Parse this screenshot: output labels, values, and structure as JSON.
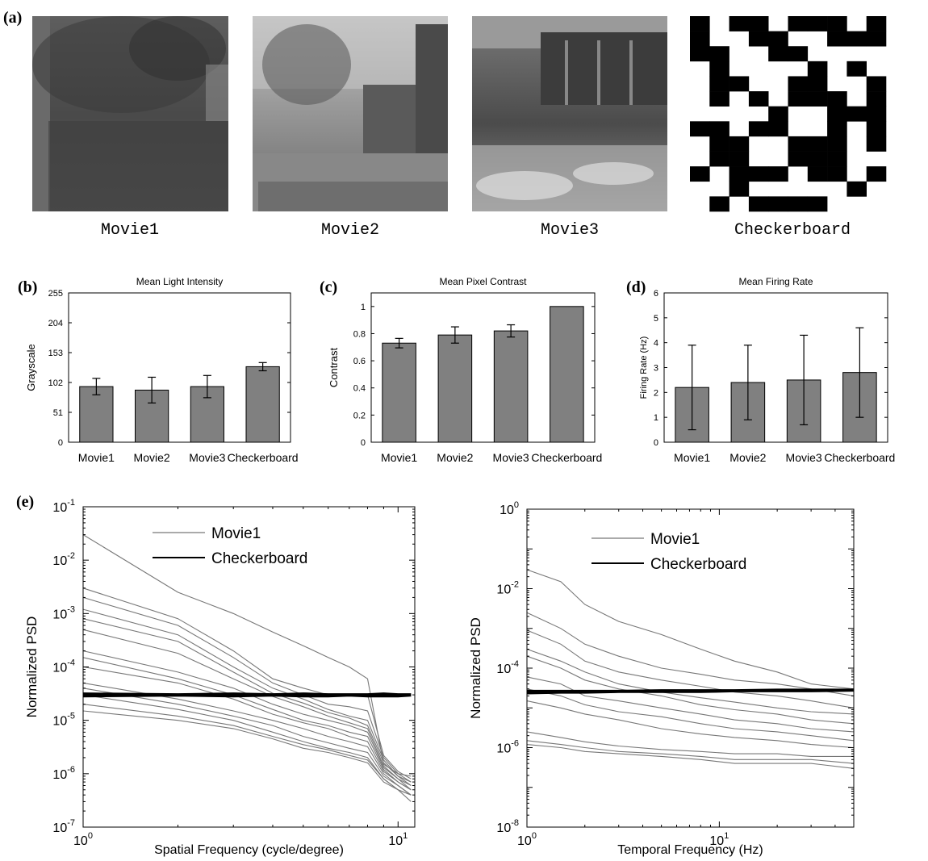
{
  "panels": {
    "a": "(a)",
    "b": "(b)",
    "c": "(c)",
    "d": "(d)",
    "e": "(e)"
  },
  "stimuli": {
    "labels": [
      "Movie1",
      "Movie2",
      "Movie3",
      "Checkerboard"
    ],
    "checker_cells": [
      "1011011101",
      "1001100111",
      "1100110000",
      "0100001010",
      "0110011001",
      "0101011101",
      "0000100111",
      "1101100101",
      "0110011101",
      "0110011100",
      "1011101101",
      "0010000010",
      "0101111000"
    ]
  },
  "colors": {
    "bar_fill": "#808080",
    "movie_line": "#777777",
    "checker_line": "#000000",
    "axis": "#000000"
  },
  "chart_data": [
    {
      "id": "b",
      "type": "bar",
      "title": "Mean Light Intensity",
      "xlabel": "",
      "ylabel": "Grayscale",
      "categories": [
        "Movie1",
        "Movie2",
        "Movie3",
        "Checkerboard"
      ],
      "values": [
        95,
        89,
        95,
        129
      ],
      "errors": [
        14,
        22,
        19,
        7
      ],
      "ylim": [
        0,
        255
      ],
      "yticks": [
        0,
        51,
        102,
        153,
        204,
        255
      ],
      "ytick_labels": [
        "0",
        "51",
        "102",
        "153",
        "204",
        "255"
      ]
    },
    {
      "id": "c",
      "type": "bar",
      "title": "Mean Pixel Contrast",
      "xlabel": "",
      "ylabel": "Contrast",
      "categories": [
        "Movie1",
        "Movie2",
        "Movie3",
        "Checkerboard"
      ],
      "values": [
        0.73,
        0.79,
        0.82,
        1.0
      ],
      "errors": [
        0.035,
        0.06,
        0.045,
        0
      ],
      "ylim": [
        0,
        1.1
      ],
      "yticks": [
        0,
        0.2,
        0.4,
        0.6,
        0.8,
        1
      ],
      "ytick_labels": [
        "0",
        "0.2",
        "0.4",
        "0.6",
        "0.8",
        "1"
      ]
    },
    {
      "id": "d",
      "type": "bar",
      "title": "Mean Firing Rate",
      "xlabel": "",
      "ylabel": "Firing Rate (Hz)",
      "categories": [
        "Movie1",
        "Movie2",
        "Movie3",
        "Checkerboard"
      ],
      "values": [
        2.2,
        2.4,
        2.5,
        2.8
      ],
      "errors": [
        1.7,
        1.5,
        1.8,
        1.8
      ],
      "ylim": [
        0,
        6
      ],
      "yticks": [
        0,
        1,
        2,
        3,
        4,
        5,
        6
      ],
      "ytick_labels": [
        "0",
        "1",
        "2",
        "3",
        "4",
        "5",
        "6"
      ]
    },
    {
      "id": "e1",
      "type": "line",
      "xlabel": "Spatial Frequency (cycle/degree)",
      "ylabel": "Normalized PSD",
      "xscale": "log",
      "yscale": "log",
      "xlim": [
        1,
        11.3
      ],
      "ylim": [
        1e-07,
        0.1
      ],
      "xtick_labels": [
        {
          "base": "10",
          "exp": "0"
        },
        {
          "base": "10",
          "exp": "1"
        }
      ],
      "ytick_labels": [
        {
          "base": "10",
          "exp": "-7"
        },
        {
          "base": "10",
          "exp": "-6"
        },
        {
          "base": "10",
          "exp": "-5"
        },
        {
          "base": "10",
          "exp": "-4"
        },
        {
          "base": "10",
          "exp": "-3"
        },
        {
          "base": "10",
          "exp": "-2"
        },
        {
          "base": "10",
          "exp": "-1"
        }
      ],
      "legend": [
        "Movie1",
        "Checkerboard"
      ],
      "legend_position": "top-right",
      "x": [
        1,
        2,
        3,
        4,
        5,
        6,
        7,
        8,
        9,
        10,
        11
      ],
      "series": [
        {
          "name": "Movie1",
          "color": "#777777",
          "lines": [
            [
              0.03,
              0.0025,
              0.001,
              0.00045,
              0.00025,
              0.00015,
              0.0001,
              6e-05,
              1.5e-06,
              1e-06,
              9e-07
            ],
            [
              0.003,
              0.0008,
              0.0002,
              6e-05,
              4e-05,
              3e-05,
              3e-05,
              3e-05,
              2.2e-06,
              1.1e-06,
              8e-07
            ],
            [
              0.002,
              0.0006,
              0.00015,
              5e-05,
              3e-05,
              2e-05,
              1.8e-05,
              1.5e-05,
              2e-06,
              1e-06,
              7e-07
            ],
            [
              0.0012,
              0.0004,
              0.0001,
              4e-05,
              2.5e-05,
              1.6e-05,
              1.2e-05,
              1e-05,
              1.8e-06,
              9e-07,
              7e-07
            ],
            [
              0.0008,
              0.0003,
              8e-05,
              3.2e-05,
              2.1e-05,
              1.4e-05,
              1.1e-05,
              8e-06,
              1.6e-06,
              9e-07,
              6e-07
            ],
            [
              0.0005,
              0.00018,
              6e-05,
              2.8e-05,
              1.8e-05,
              1.2e-05,
              9e-06,
              7e-06,
              1.4e-06,
              8e-07,
              6e-07
            ],
            [
              0.0002,
              8e-05,
              4e-05,
              2e-05,
              1.3e-05,
              1e-05,
              8e-06,
              6e-06,
              1.3e-06,
              8e-07,
              5e-07
            ],
            [
              0.00015,
              6e-05,
              3e-05,
              1.6e-05,
              1e-05,
              8e-06,
              6e-06,
              5e-06,
              1.2e-06,
              7e-07,
              5e-07
            ],
            [
              0.0001,
              5e-05,
              2.5e-05,
              1.3e-05,
              9e-06,
              7e-06,
              5e-06,
              4e-06,
              1.1e-06,
              7e-07,
              5e-07
            ],
            [
              5e-05,
              2.5e-05,
              1.5e-05,
              1e-05,
              7e-06,
              5e-06,
              4e-06,
              3.2e-06,
              1e-06,
              6e-07,
              4e-07
            ],
            [
              4e-05,
              2e-05,
              1.2e-05,
              8e-06,
              5e-06,
              3.8e-06,
              3e-06,
              2.5e-06,
              9e-07,
              6e-07,
              4e-07
            ],
            [
              3e-05,
              1.6e-05,
              1e-05,
              6e-06,
              4e-06,
              3e-06,
              2.5e-06,
              2e-06,
              8e-07,
              5e-07,
              4e-07
            ],
            [
              2e-05,
              1.2e-05,
              8e-06,
              5e-06,
              3.5e-06,
              2.8e-06,
              2.2e-06,
              1.8e-06,
              8e-07,
              5e-07,
              4e-07
            ],
            [
              1.5e-05,
              1e-05,
              7e-06,
              4.5e-06,
              3e-06,
              2.5e-06,
              2e-06,
              1.6e-06,
              7e-07,
              5e-07,
              3e-07
            ]
          ]
        },
        {
          "name": "Checkerboard",
          "color": "#000000",
          "lines": [
            [
              3e-05,
              3e-05,
              3e-05,
              3e-05,
              3e-05,
              3e-05,
              3e-05,
              3e-05,
              3e-05,
              3e-05,
              3e-05
            ],
            [
              2.8e-05,
              2.9e-05,
              2.8e-05,
              2.9e-05,
              2.8e-05,
              2.8e-05,
              2.9e-05,
              2.8e-05,
              2.8e-05,
              2.8e-05,
              2.9e-05
            ],
            [
              3.2e-05,
              3.1e-05,
              3.2e-05,
              3.1e-05,
              3.2e-05,
              3.1e-05,
              3.1e-05,
              3.1e-05,
              3.2e-05,
              3.1e-05,
              3.1e-05
            ]
          ]
        }
      ]
    },
    {
      "id": "e2",
      "type": "line",
      "xlabel": "Temporal Frequency (Hz)",
      "ylabel": "Normalized PSD",
      "xscale": "log",
      "yscale": "log",
      "xlim": [
        1,
        50
      ],
      "ylim": [
        1e-08,
        1
      ],
      "xtick_labels": [
        {
          "base": "10",
          "exp": "0"
        },
        {
          "base": "10",
          "exp": "1"
        }
      ],
      "ytick_labels": [
        {
          "base": "10",
          "exp": "-8"
        },
        {
          "base": "10",
          "exp": "-6"
        },
        {
          "base": "10",
          "exp": "-4"
        },
        {
          "base": "10",
          "exp": "-2"
        },
        {
          "base": "10",
          "exp": "0"
        }
      ],
      "legend": [
        "Movie1",
        "Checkerboard"
      ],
      "legend_position": "top-right",
      "x": [
        1,
        1.5,
        2,
        3,
        5,
        8,
        12,
        20,
        30,
        50
      ],
      "series": [
        {
          "name": "Movie1",
          "color": "#777777",
          "lines": [
            [
              0.03,
              0.015,
              0.004,
              0.0015,
              0.0007,
              0.0003,
              0.00015,
              8e-05,
              4e-05,
              3e-05
            ],
            [
              0.0025,
              0.001,
              0.0004,
              0.0002,
              0.0001,
              7e-05,
              5e-05,
              4e-05,
              3e-05,
              2e-05
            ],
            [
              0.0009,
              0.0004,
              0.00015,
              8e-05,
              5e-05,
              3.5e-05,
              2.5e-05,
              2e-05,
              1.5e-05,
              1e-05
            ],
            [
              0.0003,
              0.00015,
              8e-05,
              4e-05,
              2.5e-05,
              1.8e-05,
              1.4e-05,
              1e-05,
              8e-06,
              7e-06
            ],
            [
              0.0002,
              0.0001,
              5e-05,
              3e-05,
              2e-05,
              1.2e-05,
              9e-06,
              7e-06,
              5e-06,
              4e-06
            ],
            [
              6e-05,
              4e-05,
              2e-05,
              1.5e-05,
              1e-05,
              7e-06,
              5e-06,
              4e-06,
              3e-06,
              2.5e-06
            ],
            [
              3e-05,
              2e-05,
              1.2e-05,
              8e-06,
              6e-06,
              4e-06,
              3e-06,
              2.5e-06,
              2e-06,
              1.5e-06
            ],
            [
              1.5e-05,
              1e-05,
              7e-06,
              5e-06,
              3e-06,
              2.2e-06,
              1.8e-06,
              1.5e-06,
              1.2e-06,
              1e-06
            ],
            [
              2.5e-06,
              1.8e-06,
              1.4e-06,
              1.1e-06,
              9e-07,
              8e-07,
              7e-07,
              7e-07,
              6e-07,
              6e-07
            ],
            [
              1.5e-06,
              1.2e-06,
              1e-06,
              8e-07,
              7e-07,
              6e-07,
              5e-07,
              5e-07,
              5e-07,
              4e-07
            ],
            [
              1.2e-06,
              1e-06,
              8e-07,
              7e-07,
              6e-07,
              5e-07,
              4e-07,
              4e-07,
              4e-07,
              3e-07
            ]
          ]
        },
        {
          "name": "Checkerboard",
          "color": "#000000",
          "lines": [
            [
              2.5e-05,
              2.5e-05,
              2.5e-05,
              2.6e-05,
              2.6e-05,
              2.6e-05,
              2.7e-05,
              2.7e-05,
              2.8e-05,
              2.8e-05
            ],
            [
              2.3e-05,
              2.4e-05,
              2.4e-05,
              2.5e-05,
              2.5e-05,
              2.5e-05,
              2.6e-05,
              2.6e-05,
              2.6e-05,
              2.7e-05
            ],
            [
              2.7e-05,
              2.7e-05,
              2.7e-05,
              2.7e-05,
              2.8e-05,
              2.8e-05,
              2.8e-05,
              2.9e-05,
              2.9e-05,
              2.9e-05
            ]
          ]
        }
      ]
    }
  ]
}
